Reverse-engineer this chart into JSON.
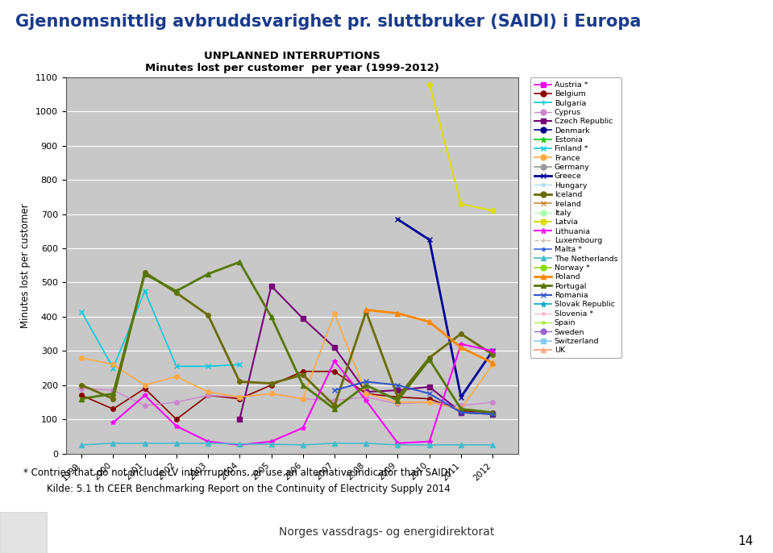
{
  "title": "Gjennomsnittlig avbruddsvarighet pr. sluttbruker (SAIDI) i Europa",
  "chart_title": "UNPLANNED INTERRUPTIONS",
  "chart_subtitle": "Minutes lost per customer  per year (1999-2012)",
  "ylabel": "Minutes lost per customer",
  "footnote": "* Contries that do not include LV interrruptions, or use an alternative indicator than SAIDI",
  "source": "Kilde: 5.1 th CEER Benchmarking Report on the Continuity of Electricity Supply 2014",
  "footer": "Norges vassdrags- og energidirektorat",
  "page_number": "14",
  "ylim": [
    0,
    1100
  ],
  "yticks": [
    0,
    100,
    200,
    300,
    400,
    500,
    600,
    700,
    800,
    900,
    1000,
    1100
  ],
  "years": [
    1999,
    2000,
    2001,
    2002,
    2003,
    2004,
    2005,
    2006,
    2007,
    2008,
    2009,
    2010,
    2011,
    2012
  ],
  "bg_color": "#c8c8c8",
  "countries": [
    {
      "name": "Austria *",
      "color": "#ee00ee",
      "marker": "s",
      "lw": 1.2,
      "ls": "-",
      "values": [
        null,
        null,
        null,
        null,
        null,
        null,
        null,
        null,
        null,
        null,
        null,
        null,
        null,
        null
      ]
    },
    {
      "name": "Belgium",
      "color": "#8b0000",
      "marker": "o",
      "lw": 1.2,
      "ls": "-",
      "values": [
        170,
        130,
        190,
        100,
        170,
        160,
        200,
        240,
        240,
        175,
        165,
        160,
        125,
        120
      ]
    },
    {
      "name": "Bulgaria",
      "color": "#00cccc",
      "marker": "+",
      "lw": 1.2,
      "ls": "-",
      "values": [
        null,
        null,
        null,
        null,
        null,
        null,
        null,
        null,
        null,
        null,
        null,
        null,
        null,
        null
      ]
    },
    {
      "name": "Cyprus",
      "color": "#cc88cc",
      "marker": "o",
      "lw": 1.0,
      "ls": "-",
      "values": [
        190,
        185,
        140,
        150,
        170,
        165,
        175,
        160,
        155,
        165,
        145,
        150,
        140,
        150
      ]
    },
    {
      "name": "Czech Republic",
      "color": "#770077",
      "marker": "s",
      "lw": 1.5,
      "ls": "-",
      "values": [
        null,
        null,
        null,
        null,
        null,
        100,
        490,
        395,
        310,
        180,
        185,
        195,
        120,
        115
      ]
    },
    {
      "name": "Denmark",
      "color": "#00008b",
      "marker": "o",
      "lw": 1.2,
      "ls": "-",
      "values": [
        null,
        null,
        null,
        null,
        null,
        null,
        null,
        null,
        null,
        null,
        null,
        null,
        null,
        null
      ]
    },
    {
      "name": "Estonia",
      "color": "#00cc00",
      "marker": "*",
      "lw": 1.2,
      "ls": "-",
      "values": [
        null,
        null,
        null,
        null,
        null,
        null,
        null,
        null,
        null,
        null,
        null,
        null,
        null,
        null
      ]
    },
    {
      "name": "Finland *",
      "color": "#00ccdd",
      "marker": "x",
      "lw": 1.2,
      "ls": "-",
      "values": [
        415,
        250,
        475,
        255,
        255,
        260,
        null,
        null,
        null,
        null,
        null,
        null,
        null,
        null
      ]
    },
    {
      "name": "France",
      "color": "#ffaa44",
      "marker": "o",
      "lw": 1.2,
      "ls": "-",
      "values": [
        280,
        260,
        200,
        225,
        180,
        165,
        175,
        160,
        410,
        175,
        150,
        150,
        130,
        260
      ]
    },
    {
      "name": "Germany",
      "color": "#999999",
      "marker": "o",
      "lw": 1.2,
      "ls": "-",
      "values": [
        null,
        null,
        null,
        null,
        null,
        null,
        null,
        null,
        null,
        null,
        null,
        null,
        null,
        null
      ]
    },
    {
      "name": "Greece",
      "color": "#000099",
      "marker": "x",
      "lw": 2.0,
      "ls": "-",
      "values": [
        null,
        null,
        null,
        null,
        null,
        null,
        null,
        null,
        null,
        null,
        685,
        625,
        165,
        300
      ]
    },
    {
      "name": "Hungary",
      "color": "#aaddee",
      "marker": ".",
      "lw": 1.0,
      "ls": "-",
      "values": [
        null,
        null,
        null,
        null,
        null,
        null,
        null,
        null,
        null,
        null,
        null,
        null,
        null,
        null
      ]
    },
    {
      "name": "Iceland",
      "color": "#6b6b00",
      "marker": "o",
      "lw": 2.0,
      "ls": "-",
      "values": [
        200,
        160,
        530,
        470,
        405,
        210,
        205,
        230,
        140,
        415,
        165,
        280,
        350,
        290
      ]
    },
    {
      "name": "Ireland",
      "color": "#cc8833",
      "marker": "x",
      "lw": 1.2,
      "ls": "-",
      "values": [
        null,
        null,
        null,
        null,
        null,
        null,
        null,
        null,
        null,
        null,
        null,
        null,
        null,
        null
      ]
    },
    {
      "name": "Italy",
      "color": "#aaffaa",
      "marker": "o",
      "lw": 1.0,
      "ls": "-",
      "values": [
        null,
        null,
        null,
        null,
        null,
        null,
        null,
        null,
        null,
        null,
        null,
        null,
        null,
        null
      ]
    },
    {
      "name": "Latvia",
      "color": "#dddd00",
      "marker": "o",
      "lw": 1.5,
      "ls": "-",
      "values": [
        null,
        null,
        null,
        null,
        null,
        null,
        null,
        null,
        null,
        null,
        null,
        1080,
        730,
        710
      ]
    },
    {
      "name": "Lithuania",
      "color": "#ff00ff",
      "marker": "*",
      "lw": 1.5,
      "ls": "-",
      "values": [
        null,
        90,
        170,
        80,
        35,
        25,
        35,
        75,
        270,
        155,
        30,
        35,
        320,
        300
      ]
    },
    {
      "name": "Luxembourg",
      "color": "#ccbbaa",
      "marker": "+",
      "lw": 1.0,
      "ls": "--",
      "values": [
        null,
        null,
        null,
        null,
        null,
        null,
        null,
        null,
        null,
        null,
        null,
        null,
        null,
        null
      ]
    },
    {
      "name": "Malta *",
      "color": "#4169e1",
      "marker": ".",
      "lw": 1.2,
      "ls": "-",
      "values": [
        null,
        null,
        null,
        null,
        null,
        null,
        null,
        null,
        null,
        null,
        null,
        null,
        null,
        null
      ]
    },
    {
      "name": "The Netherlands",
      "color": "#44bbcc",
      "marker": "^",
      "lw": 1.2,
      "ls": "-",
      "values": [
        25,
        30,
        30,
        30,
        30,
        28,
        27,
        25,
        30,
        30,
        25,
        25,
        25,
        25
      ]
    },
    {
      "name": "Norway *",
      "color": "#88dd00",
      "marker": "o",
      "lw": 1.2,
      "ls": "-",
      "values": [
        null,
        null,
        null,
        null,
        null,
        null,
        null,
        null,
        null,
        null,
        null,
        null,
        null,
        null
      ]
    },
    {
      "name": "Poland",
      "color": "#ff8800",
      "marker": "^",
      "lw": 2.0,
      "ls": "-",
      "values": [
        null,
        null,
        null,
        null,
        null,
        null,
        null,
        null,
        null,
        420,
        410,
        385,
        310,
        265
      ]
    },
    {
      "name": "Portugal",
      "color": "#557700",
      "marker": "^",
      "lw": 2.0,
      "ls": "-",
      "values": [
        160,
        175,
        525,
        475,
        525,
        560,
        400,
        200,
        130,
        200,
        155,
        275,
        130,
        120
      ]
    },
    {
      "name": "Romania",
      "color": "#3355cc",
      "marker": "x",
      "lw": 1.5,
      "ls": "-",
      "values": [
        null,
        null,
        null,
        null,
        null,
        null,
        null,
        null,
        185,
        210,
        200,
        175,
        120,
        115
      ]
    },
    {
      "name": "Slovak Republic",
      "color": "#00aacc",
      "marker": "*",
      "lw": 1.2,
      "ls": "-",
      "values": [
        null,
        null,
        null,
        null,
        null,
        null,
        null,
        null,
        null,
        null,
        null,
        null,
        null,
        null
      ]
    },
    {
      "name": "Slovenia *",
      "color": "#ffbbcc",
      "marker": ".",
      "lw": 1.0,
      "ls": "-",
      "values": [
        null,
        null,
        null,
        null,
        null,
        null,
        null,
        null,
        null,
        null,
        null,
        null,
        null,
        null
      ]
    },
    {
      "name": "Spain",
      "color": "#aaee44",
      "marker": ".",
      "lw": 1.0,
      "ls": "-",
      "values": [
        null,
        null,
        null,
        null,
        null,
        null,
        null,
        null,
        null,
        null,
        null,
        null,
        null,
        null
      ]
    },
    {
      "name": "Sweden",
      "color": "#9966cc",
      "marker": "o",
      "lw": 1.0,
      "ls": "-",
      "values": [
        null,
        null,
        null,
        null,
        null,
        null,
        null,
        null,
        null,
        null,
        null,
        null,
        null,
        null
      ]
    },
    {
      "name": "Switzerland",
      "color": "#88ccee",
      "marker": "s",
      "lw": 1.2,
      "ls": "-",
      "values": [
        null,
        null,
        null,
        null,
        null,
        null,
        null,
        null,
        null,
        null,
        null,
        null,
        null,
        null
      ]
    },
    {
      "name": "UK",
      "color": "#ffaa88",
      "marker": "^",
      "lw": 1.5,
      "ls": "-",
      "values": [
        null,
        null,
        null,
        null,
        null,
        null,
        null,
        null,
        null,
        null,
        null,
        null,
        null,
        null
      ]
    }
  ]
}
